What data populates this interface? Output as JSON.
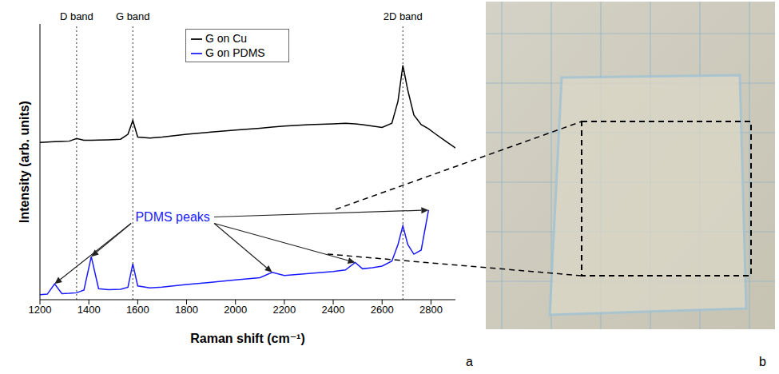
{
  "chart_data": {
    "type": "line",
    "x_label": "Raman shift (cm⁻¹)",
    "y_label": "Intensity (arb. units)",
    "x": [
      1200,
      1230,
      1260,
      1290,
      1320,
      1350,
      1380,
      1410,
      1440,
      1480,
      1530,
      1560,
      1580,
      1600,
      1650,
      1700,
      1800,
      1900,
      2000,
      2100,
      2150,
      2200,
      2300,
      2400,
      2450,
      2490,
      2520,
      2560,
      2600,
      2640,
      2665,
      2685,
      2705,
      2730,
      2760,
      2790,
      2820,
      2860,
      2900
    ],
    "series": [
      {
        "name": "G on Cu",
        "color": "#000000",
        "values": [
          57,
          57.2,
          57.3,
          57.4,
          57.5,
          58.5,
          57.8,
          57.8,
          57.9,
          58,
          58.2,
          60,
          65,
          59,
          58.6,
          59,
          60,
          60.8,
          61.5,
          62.2,
          62.6,
          63,
          63.5,
          63.8,
          64,
          63.8,
          63.5,
          63,
          62.5,
          64,
          72,
          85,
          76,
          67,
          63.5,
          62,
          60,
          57.5,
          55
        ]
      },
      {
        "name": "G on PDMS",
        "color": "#1a1aff",
        "values": [
          1.8,
          2,
          5.7,
          2.2,
          2.3,
          2.5,
          3.5,
          15.6,
          4,
          3.6,
          3.8,
          4.5,
          13,
          5,
          4.3,
          4.6,
          5.5,
          6.3,
          7.2,
          8,
          9.9,
          8.8,
          9.5,
          10.2,
          10.8,
          13.5,
          11.2,
          11.6,
          12.2,
          14,
          20,
          26.8,
          20,
          16.5,
          18,
          32.5,
          null,
          null,
          null
        ]
      }
    ],
    "xlim": [
      1200,
      2900
    ],
    "xticks": [
      1200,
      1400,
      1600,
      1800,
      2000,
      2200,
      2400,
      2600,
      2800
    ],
    "ylim": [
      0,
      100
    ],
    "tick_labels": "x",
    "legend": "top",
    "annotations": [
      {
        "text": "D band",
        "x": 1350
      },
      {
        "text": "G band",
        "x": 1580
      },
      {
        "text": "2D band",
        "x": 2685
      },
      {
        "text": "PDMS peaks",
        "points": [
          [
            1260,
            5.7
          ],
          [
            1410,
            15.6
          ],
          [
            2150,
            9.9
          ],
          [
            2490,
            13.5
          ],
          [
            2790,
            32.5
          ]
        ]
      }
    ]
  },
  "panel_labels": [
    "a",
    "b"
  ]
}
